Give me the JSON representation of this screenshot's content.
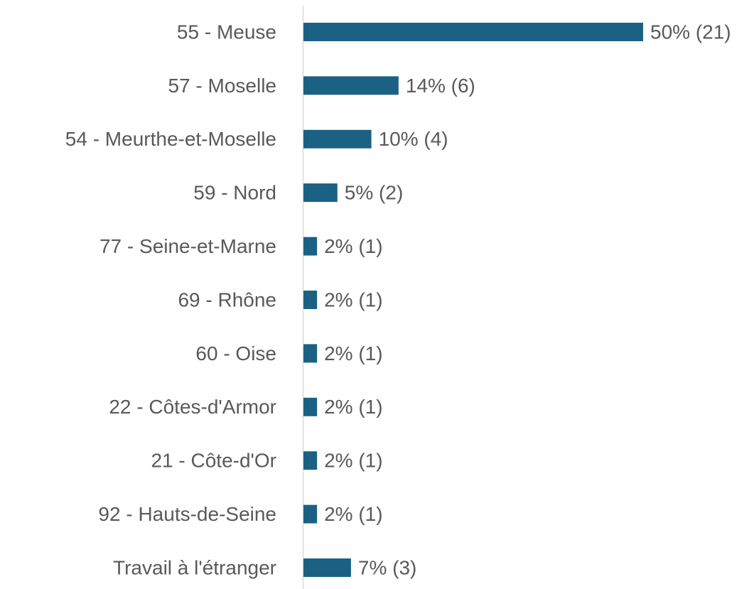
{
  "chart_data": {
    "type": "bar",
    "orientation": "horizontal",
    "color": "#1b6183",
    "categories": [
      "55 - Meuse",
      "57 - Moselle",
      "54 - Meurthe-et-Moselle",
      "59 - Nord",
      "77 - Seine-et-Marne",
      "69 - Rhône",
      "60 - Oise",
      "22 - Côtes-d'Armor",
      "21 - Côte-d'Or",
      "92 - Hauts-de-Seine",
      "Travail à l'étranger"
    ],
    "values": [
      50,
      14,
      10,
      5,
      2,
      2,
      2,
      2,
      2,
      2,
      7
    ],
    "value_labels": [
      "50% (21)",
      "14% (6)",
      "10% (4)",
      "5% (2)",
      "2% (1)",
      "2% (1)",
      "2% (1)",
      "2% (1)",
      "2% (1)",
      "2% (1)",
      "7% (3)"
    ]
  }
}
